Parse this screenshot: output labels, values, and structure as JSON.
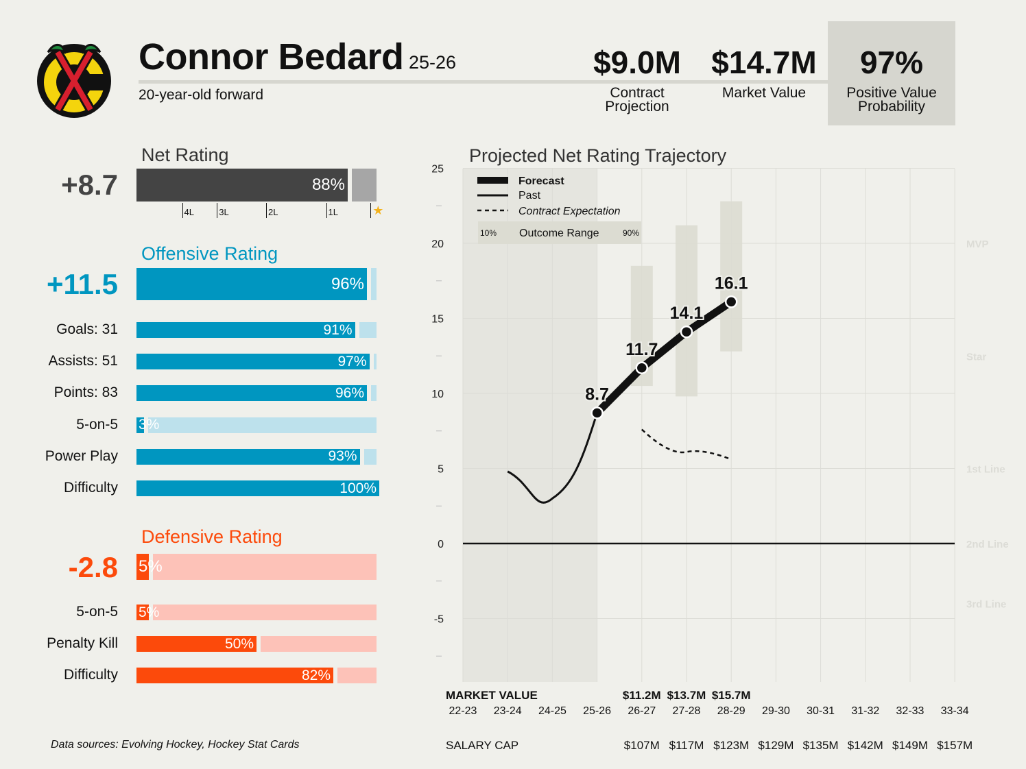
{
  "header": {
    "name": "Connor Bedard",
    "season": "25-26",
    "subtitle": "20-year-old forward",
    "stats": [
      {
        "value": "$9.0M",
        "label1": "Contract",
        "label2": "Projection"
      },
      {
        "value": "$14.7M",
        "label1": "Market Value",
        "label2": ""
      },
      {
        "value": "97%",
        "label1": "Positive Value",
        "label2": "Probability"
      }
    ]
  },
  "colors": {
    "net": "#444444",
    "net_track": "#a6a6a6",
    "offense": "#0096c0",
    "offense_track": "#bde1ec",
    "defense": "#fc4a0b",
    "defense_track": "#fdc2b8",
    "star": "#f4b21a",
    "logo_red": "#d71f2e",
    "logo_yellow": "#f4d40d",
    "logo_green": "#1e8a3c"
  },
  "net": {
    "title": "Net Rating",
    "value": "+8.7",
    "pct": 88,
    "pct_label": "88%",
    "ticks": [
      {
        "label": "4L",
        "pct": 19
      },
      {
        "label": "3L",
        "pct": 33.5
      },
      {
        "label": "2L",
        "pct": 54
      },
      {
        "label": "1L",
        "pct": 79
      },
      {
        "label": "",
        "pct": 97.5
      }
    ],
    "star": "★"
  },
  "offense": {
    "title": "Offensive Rating",
    "value": "+11.5",
    "pct": 96,
    "pct_label": "96%",
    "rows": [
      {
        "label": "Goals: 31",
        "pct": 91,
        "pct_label": "91%"
      },
      {
        "label": "Assists: 51",
        "pct": 97,
        "pct_label": "97%"
      },
      {
        "label": "Points: 83",
        "pct": 96,
        "pct_label": "96%"
      },
      {
        "label": "5-on-5",
        "pct": 3,
        "pct_label": "3%"
      },
      {
        "label": "Power Play",
        "pct": 93,
        "pct_label": "93%"
      },
      {
        "label": "Difficulty",
        "pct": 100,
        "pct_label": "100%"
      }
    ]
  },
  "defense": {
    "title": "Defensive Rating",
    "value": "-2.8",
    "pct": 5,
    "pct_label": "5%",
    "rows": [
      {
        "label": "5-on-5",
        "pct": 5,
        "pct_label": "5%"
      },
      {
        "label": "Penalty Kill",
        "pct": 50,
        "pct_label": "50%"
      },
      {
        "label": "Difficulty",
        "pct": 82,
        "pct_label": "82%"
      }
    ]
  },
  "chart_data": {
    "type": "line",
    "title": "Projected Net Rating Trajectory",
    "x": [
      "22-23",
      "23-24",
      "24-25",
      "25-26",
      "26-27",
      "27-28",
      "28-29",
      "29-30",
      "30-31",
      "31-32",
      "32-33",
      "33-34"
    ],
    "ylim": [
      -9,
      25
    ],
    "yticks": [
      -5,
      0,
      5,
      10,
      15,
      20,
      25
    ],
    "tier_labels": [
      {
        "label": "MVP",
        "y": 20
      },
      {
        "label": "Star",
        "y": 12.5
      },
      {
        "label": "1st Line",
        "y": 5
      },
      {
        "label": "2nd Line",
        "y": 0
      },
      {
        "label": "3rd Line",
        "y": -4
      }
    ],
    "series": [
      {
        "name": "Past",
        "x": [
          "23-24",
          "24-25",
          "25-26"
        ],
        "values": [
          4.8,
          3.0,
          8.7
        ]
      },
      {
        "name": "Forecast",
        "x": [
          "25-26",
          "26-27",
          "27-28",
          "28-29"
        ],
        "values": [
          8.7,
          11.7,
          14.1,
          16.1
        ],
        "labels": [
          "8.7",
          "11.7",
          "14.1",
          "16.1"
        ]
      },
      {
        "name": "Contract Expectation",
        "x": [
          "26-27",
          "27-28",
          "28-29"
        ],
        "values": [
          7.6,
          6.1,
          5.6
        ]
      }
    ],
    "outcome_range": [
      {
        "x": "26-27",
        "low": 10.5,
        "high": 18.5
      },
      {
        "x": "27-28",
        "low": 9.8,
        "high": 21.2
      },
      {
        "x": "28-29",
        "low": 12.8,
        "high": 22.8
      }
    ],
    "legend": {
      "forecast": "Forecast",
      "past": "Past",
      "contract": "Contract Expectation",
      "range": "Outcome Range",
      "low": "10%",
      "high": "90%"
    },
    "market_value_label": "MARKET VALUE",
    "market_values": [
      "",
      "",
      "",
      "",
      "$11.2M",
      "$13.7M",
      "$15.7M",
      "",
      "",
      "",
      "",
      ""
    ],
    "salary_cap_label": "SALARY CAP",
    "salary_caps": [
      "",
      "",
      "",
      "",
      "$107M",
      "$117M",
      "$123M",
      "$129M",
      "$135M",
      "$142M",
      "$149M",
      "$157M"
    ]
  },
  "footer": "Data sources: Evolving Hockey, Hockey Stat Cards"
}
